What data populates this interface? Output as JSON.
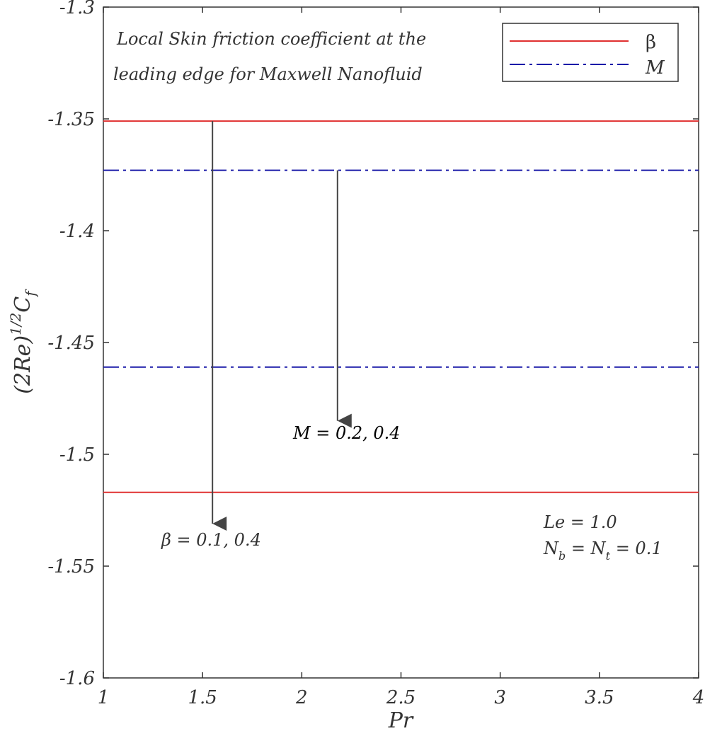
{
  "chart_data": {
    "type": "line",
    "title": "",
    "xlabel": "Pr",
    "ylabel": "(2Re)^1/2 C_f",
    "ylabel_parts": {
      "base": "(2Re)",
      "power": "1/2",
      "var": "C",
      "sub": "f"
    },
    "xlim": [
      1,
      4
    ],
    "ylim": [
      -1.6,
      -1.3
    ],
    "x_ticks": [
      1,
      1.5,
      2,
      2.5,
      3,
      3.5,
      4
    ],
    "x_tick_labels": [
      "1",
      "1.5",
      "2",
      "2.5",
      "3",
      "3.5",
      "4"
    ],
    "y_ticks": [
      -1.6,
      -1.55,
      -1.5,
      -1.45,
      -1.4,
      -1.35,
      -1.3
    ],
    "y_tick_labels": [
      "-1.6",
      "-1.55",
      "-1.5",
      "-1.45",
      "-1.4",
      "-1.35",
      "-1.3"
    ],
    "grid": false,
    "legend_position": "top-right",
    "series": [
      {
        "name": "β",
        "color": "#e03030",
        "style": "solid",
        "x": [
          1,
          4
        ],
        "values_by_case": [
          {
            "value": 0.1,
            "y": [
              -1.351,
              -1.351
            ]
          },
          {
            "value": 0.4,
            "y": [
              -1.517,
              -1.517
            ]
          }
        ]
      },
      {
        "name": "M",
        "color": "#1a1aa8",
        "style": "dashdot",
        "x": [
          1,
          4
        ],
        "values_by_case": [
          {
            "value": 0.2,
            "y": [
              -1.373,
              -1.373
            ]
          },
          {
            "value": 0.4,
            "y": [
              -1.461,
              -1.461
            ]
          }
        ]
      }
    ],
    "annotations": {
      "description_line1": "Local Skin friction coefficient at the",
      "description_line2": "leading edge for Maxwell Nanofluid",
      "beta_label": "β =  0.1, 0.4",
      "m_label": "M =  0.2,  0.4",
      "le_label": "Le = 1.0",
      "nb_label": {
        "N": "N",
        "b": "b",
        "mid": " =  ",
        "N2": "N",
        "t": "t",
        "tail": " = 0.1"
      }
    },
    "arrows": [
      {
        "x": 1.55,
        "y_from": -1.351,
        "y_to": -1.531
      },
      {
        "x": 2.18,
        "y_from": -1.373,
        "y_to": -1.485
      }
    ]
  }
}
